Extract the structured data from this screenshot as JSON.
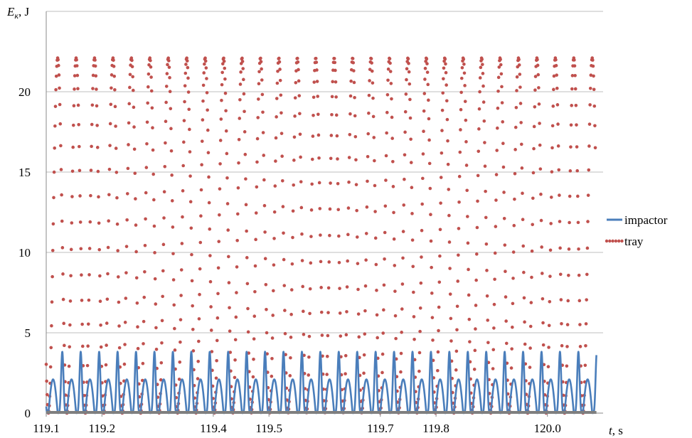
{
  "chart_data": {
    "type": "line",
    "title": "",
    "ylabel_var": "E",
    "ylabel_sub": "к",
    "ylabel_unit": ", J",
    "xlabel_var": "t",
    "xlabel_unit": ", s",
    "ylim": [
      0,
      25
    ],
    "yticks": [
      0,
      5,
      10,
      15,
      20
    ],
    "xlim": [
      119.1,
      120.1
    ],
    "xticks": [
      119.1,
      119.2,
      119.4,
      119.5,
      119.7,
      119.8,
      120.0
    ],
    "xtick_labels": [
      "119.1",
      "119.2",
      "119.4",
      "119.5",
      "119.7",
      "119.8",
      "120.0"
    ],
    "grid": "horizontal",
    "legend": "right",
    "colors": {
      "impactor": "#4a7ebb",
      "tray": "#c0504d",
      "grid": "#bfbfbf"
    },
    "series": [
      {
        "name": "impactor",
        "style": "solid",
        "description_values": {
          "period_s": 0.0331,
          "phase_start": 119.104,
          "main_peak": 2.1,
          "secondary_peak": 3.9,
          "min": 0
        }
      },
      {
        "name": "tray",
        "style": "dotted",
        "description_values": {
          "period_s": 0.0331,
          "phase_start": 119.104,
          "peak": 22.1,
          "min": 0
        }
      }
    ]
  }
}
